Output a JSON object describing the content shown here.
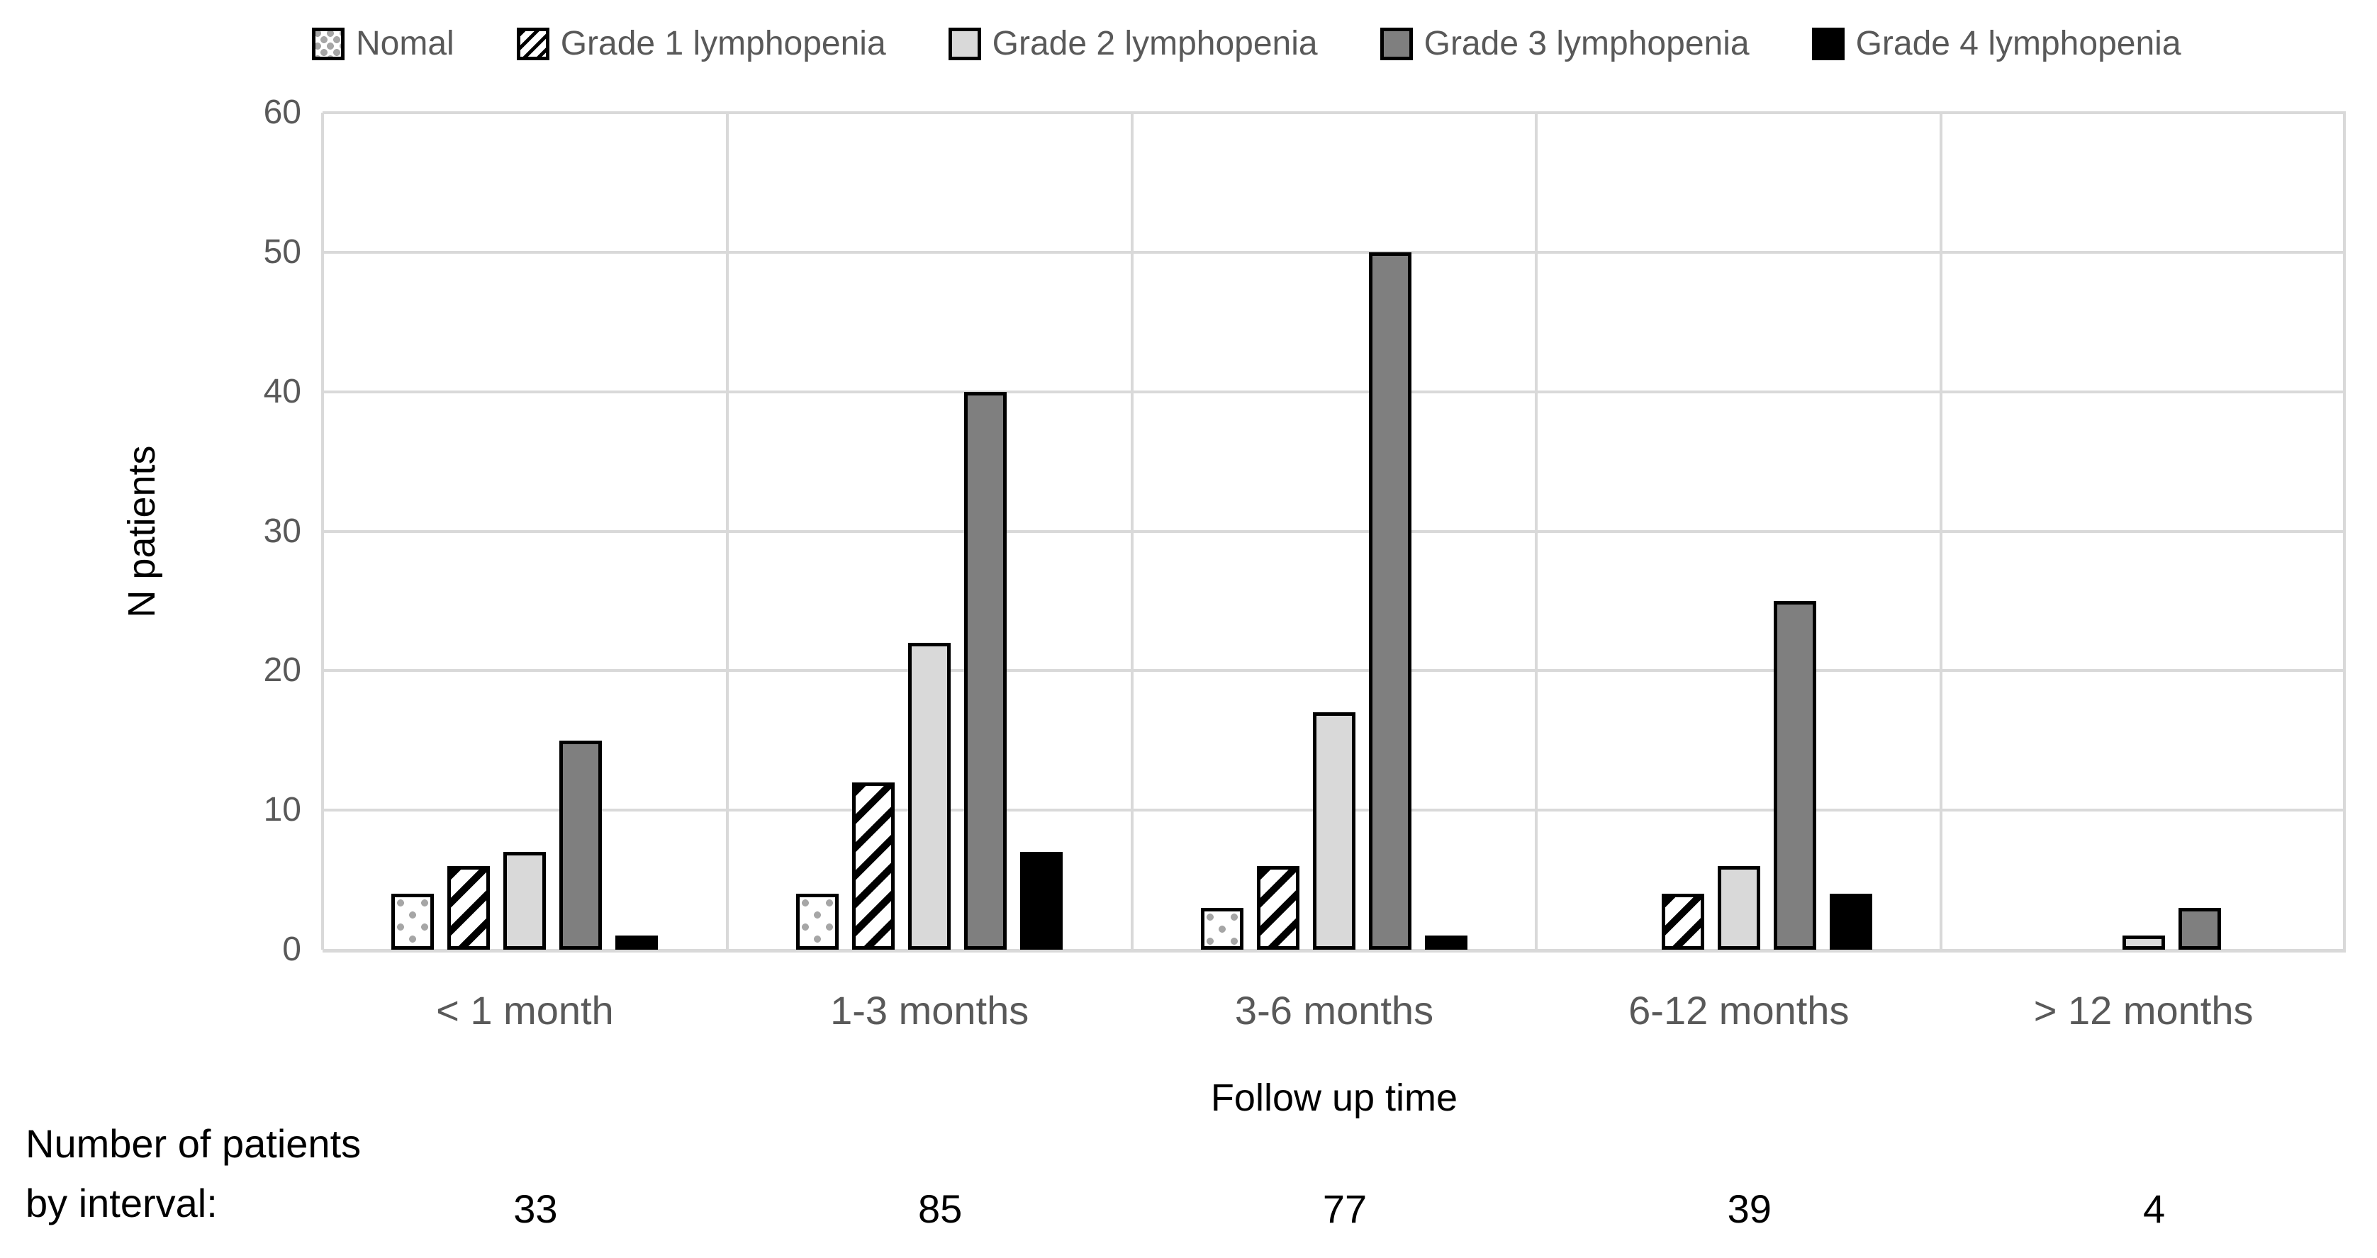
{
  "chart_data": {
    "type": "bar",
    "categories": [
      "< 1 month",
      "1-3 months",
      "3-6 months",
      "6-12 months",
      "> 12 months"
    ],
    "series": [
      {
        "name": "Nomal",
        "pattern": "dots",
        "values": [
          4,
          4,
          3,
          0,
          0
        ]
      },
      {
        "name": "Grade 1 lymphopenia",
        "pattern": "hatch",
        "values": [
          6,
          12,
          6,
          4,
          0
        ]
      },
      {
        "name": "Grade 2 lymphopenia",
        "pattern": "light",
        "values": [
          7,
          22,
          17,
          6,
          1
        ],
        "color": "#D9D9D9"
      },
      {
        "name": "Grade 3 lymphopenia",
        "pattern": "dark",
        "values": [
          15,
          40,
          50,
          25,
          3
        ],
        "color": "#7F7F7F"
      },
      {
        "name": "Grade 4 lymphopenia",
        "pattern": "black",
        "values": [
          1,
          7,
          1,
          4,
          0
        ],
        "color": "#000000"
      }
    ],
    "xlabel": "Follow up time",
    "ylabel": "N patients",
    "ylim": [
      0,
      60
    ],
    "yticks": [
      0,
      10,
      20,
      30,
      40,
      50,
      60
    ],
    "grid": true,
    "legend_position": "top"
  },
  "footer": {
    "note_line1": "Number of patients",
    "note_line2": "by interval:",
    "counts_by_interval": [
      "33",
      "85",
      "77",
      "39",
      "4"
    ]
  },
  "colors": {
    "axis_text": "#595959",
    "gridline": "#D9D9D9",
    "bar_outline": "#000000",
    "dot_pattern": "#A6A6A6",
    "grade2_fill": "#D9D9D9",
    "grade3_fill": "#7F7F7F",
    "grade4_fill": "#000000"
  }
}
